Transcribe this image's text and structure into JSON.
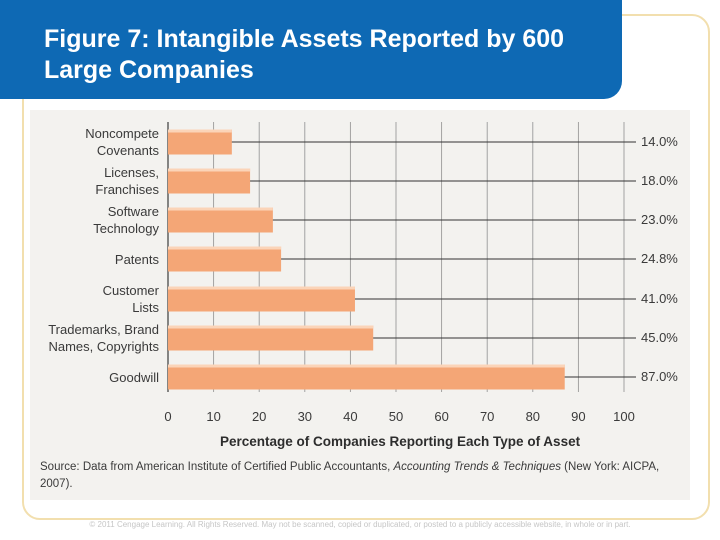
{
  "title": "Figure 7: Intangible Assets Reported by 600 Large Companies",
  "colors": {
    "title_bg": "#0e69b4",
    "bar": "#f4a676",
    "frame": "#f2dfae"
  },
  "chart_data": {
    "type": "bar",
    "orientation": "horizontal",
    "title": "Figure 7: Intangible Assets Reported by 600 Large Companies",
    "xlabel": "Percentage of Companies Reporting Each Type of Asset",
    "ylabel": "",
    "xlim": [
      0,
      100
    ],
    "ticks": [
      "0",
      "10",
      "20",
      "30",
      "40",
      "50",
      "60",
      "70",
      "80",
      "90",
      "100"
    ],
    "categories": [
      {
        "lines": [
          "Noncompete",
          "Covenants"
        ],
        "value": 14.0,
        "label": "14.0%"
      },
      {
        "lines": [
          "Licenses,",
          "Franchises"
        ],
        "value": 18.0,
        "label": "18.0%"
      },
      {
        "lines": [
          "Software",
          "Technology"
        ],
        "value": 23.0,
        "label": "23.0%"
      },
      {
        "lines": [
          "Patents"
        ],
        "value": 24.8,
        "label": "24.8%"
      },
      {
        "lines": [
          "Customer",
          "Lists"
        ],
        "value": 41.0,
        "label": "41.0%"
      },
      {
        "lines": [
          "Trademarks, Brand",
          "Names, Copyrights"
        ],
        "value": 45.0,
        "label": "45.0%"
      },
      {
        "lines": [
          "Goodwill"
        ],
        "value": 87.0,
        "label": "87.0%"
      }
    ],
    "grid": true
  },
  "source": {
    "prefix": "Source: Data from American Institute of Certified Public Accountants, ",
    "italic": "Accounting Trends & Techniques",
    "suffix": " (New York: AICPA, 2007)."
  },
  "footer": "© 2011 Cengage Learning. All Rights Reserved. May not be scanned, copied or duplicated, or posted to a publicly accessible website, in whole or in part."
}
